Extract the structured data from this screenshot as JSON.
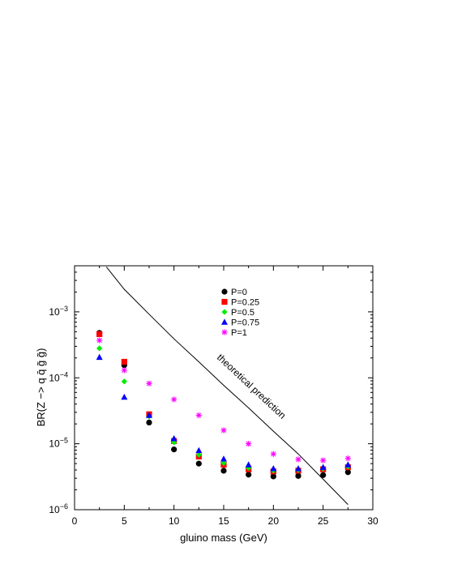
{
  "chart_data": {
    "type": "scatter",
    "xlabel": "gluino mass  (GeV)",
    "ylabel": "BR(Z −> q q̄ g̃ g̃)",
    "xlim": [
      0,
      30
    ],
    "ylim": [
      1e-06,
      0.005
    ],
    "y_scale": "log",
    "x_ticks": [
      0,
      5,
      10,
      15,
      20,
      25,
      30
    ],
    "y_ticks": [
      {
        "value": 1e-06,
        "base": "10",
        "exp": "−6"
      },
      {
        "value": 1e-05,
        "base": "10",
        "exp": "−5"
      },
      {
        "value": 0.0001,
        "base": "10",
        "exp": "−4"
      },
      {
        "value": 0.001,
        "base": "10",
        "exp": "−3"
      }
    ],
    "grid": false,
    "legend_position": "top-center",
    "x": [
      2.5,
      5,
      7.5,
      10,
      12.5,
      15,
      17.5,
      20,
      22.5,
      25,
      27.5
    ],
    "series": [
      {
        "name": "P=0",
        "marker": "circle",
        "color": "#000000",
        "values": [
          0.00048,
          0.000155,
          2.1e-05,
          8.2e-06,
          5e-06,
          3.9e-06,
          3.4e-06,
          3.2e-06,
          3.25e-06,
          3.35e-06,
          3.7e-06
        ]
      },
      {
        "name": "P=0.25",
        "marker": "square",
        "color": "#ff0000",
        "values": [
          0.00046,
          0.000175,
          2.8e-05,
          1.1e-05,
          6.4e-06,
          4.8e-06,
          4.1e-06,
          3.8e-06,
          3.9e-06,
          4.1e-06,
          4.4e-06
        ]
      },
      {
        "name": "P=0.5",
        "marker": "diamond",
        "color": "#00ee00",
        "values": [
          0.00028,
          8.8e-05,
          2.6e-05,
          1.05e-05,
          6.8e-06,
          5.1e-06,
          4.3e-06,
          3.9e-06,
          4e-06,
          4.2e-06,
          4.5e-06
        ]
      },
      {
        "name": "P=0.75",
        "marker": "triangle",
        "color": "#0000ff",
        "values": [
          0.000205,
          5.1e-05,
          2.7e-05,
          1.2e-05,
          7.9e-06,
          5.9e-06,
          4.8e-06,
          4.2e-06,
          4.2e-06,
          4.4e-06,
          4.8e-06
        ]
      },
      {
        "name": "P=1",
        "marker": "star",
        "color": "#ff00ff",
        "values": [
          0.00037,
          0.00013,
          8.2e-05,
          4.7e-05,
          2.7e-05,
          1.6e-05,
          1e-05,
          7e-06,
          5.8e-06,
          5.6e-06,
          6e-06
        ]
      }
    ],
    "theory_curve": {
      "label": "theoretical prediction",
      "x": [
        3.2,
        5,
        7.5,
        10,
        12.5,
        15,
        17.5,
        20,
        22.5,
        25,
        27.5
      ],
      "y": [
        0.0048,
        0.0022,
        0.00092,
        0.00039,
        0.000175,
        7.7e-05,
        3.5e-05,
        1.55e-05,
        7e-06,
        2.9e-06,
        1.2e-06
      ]
    }
  }
}
